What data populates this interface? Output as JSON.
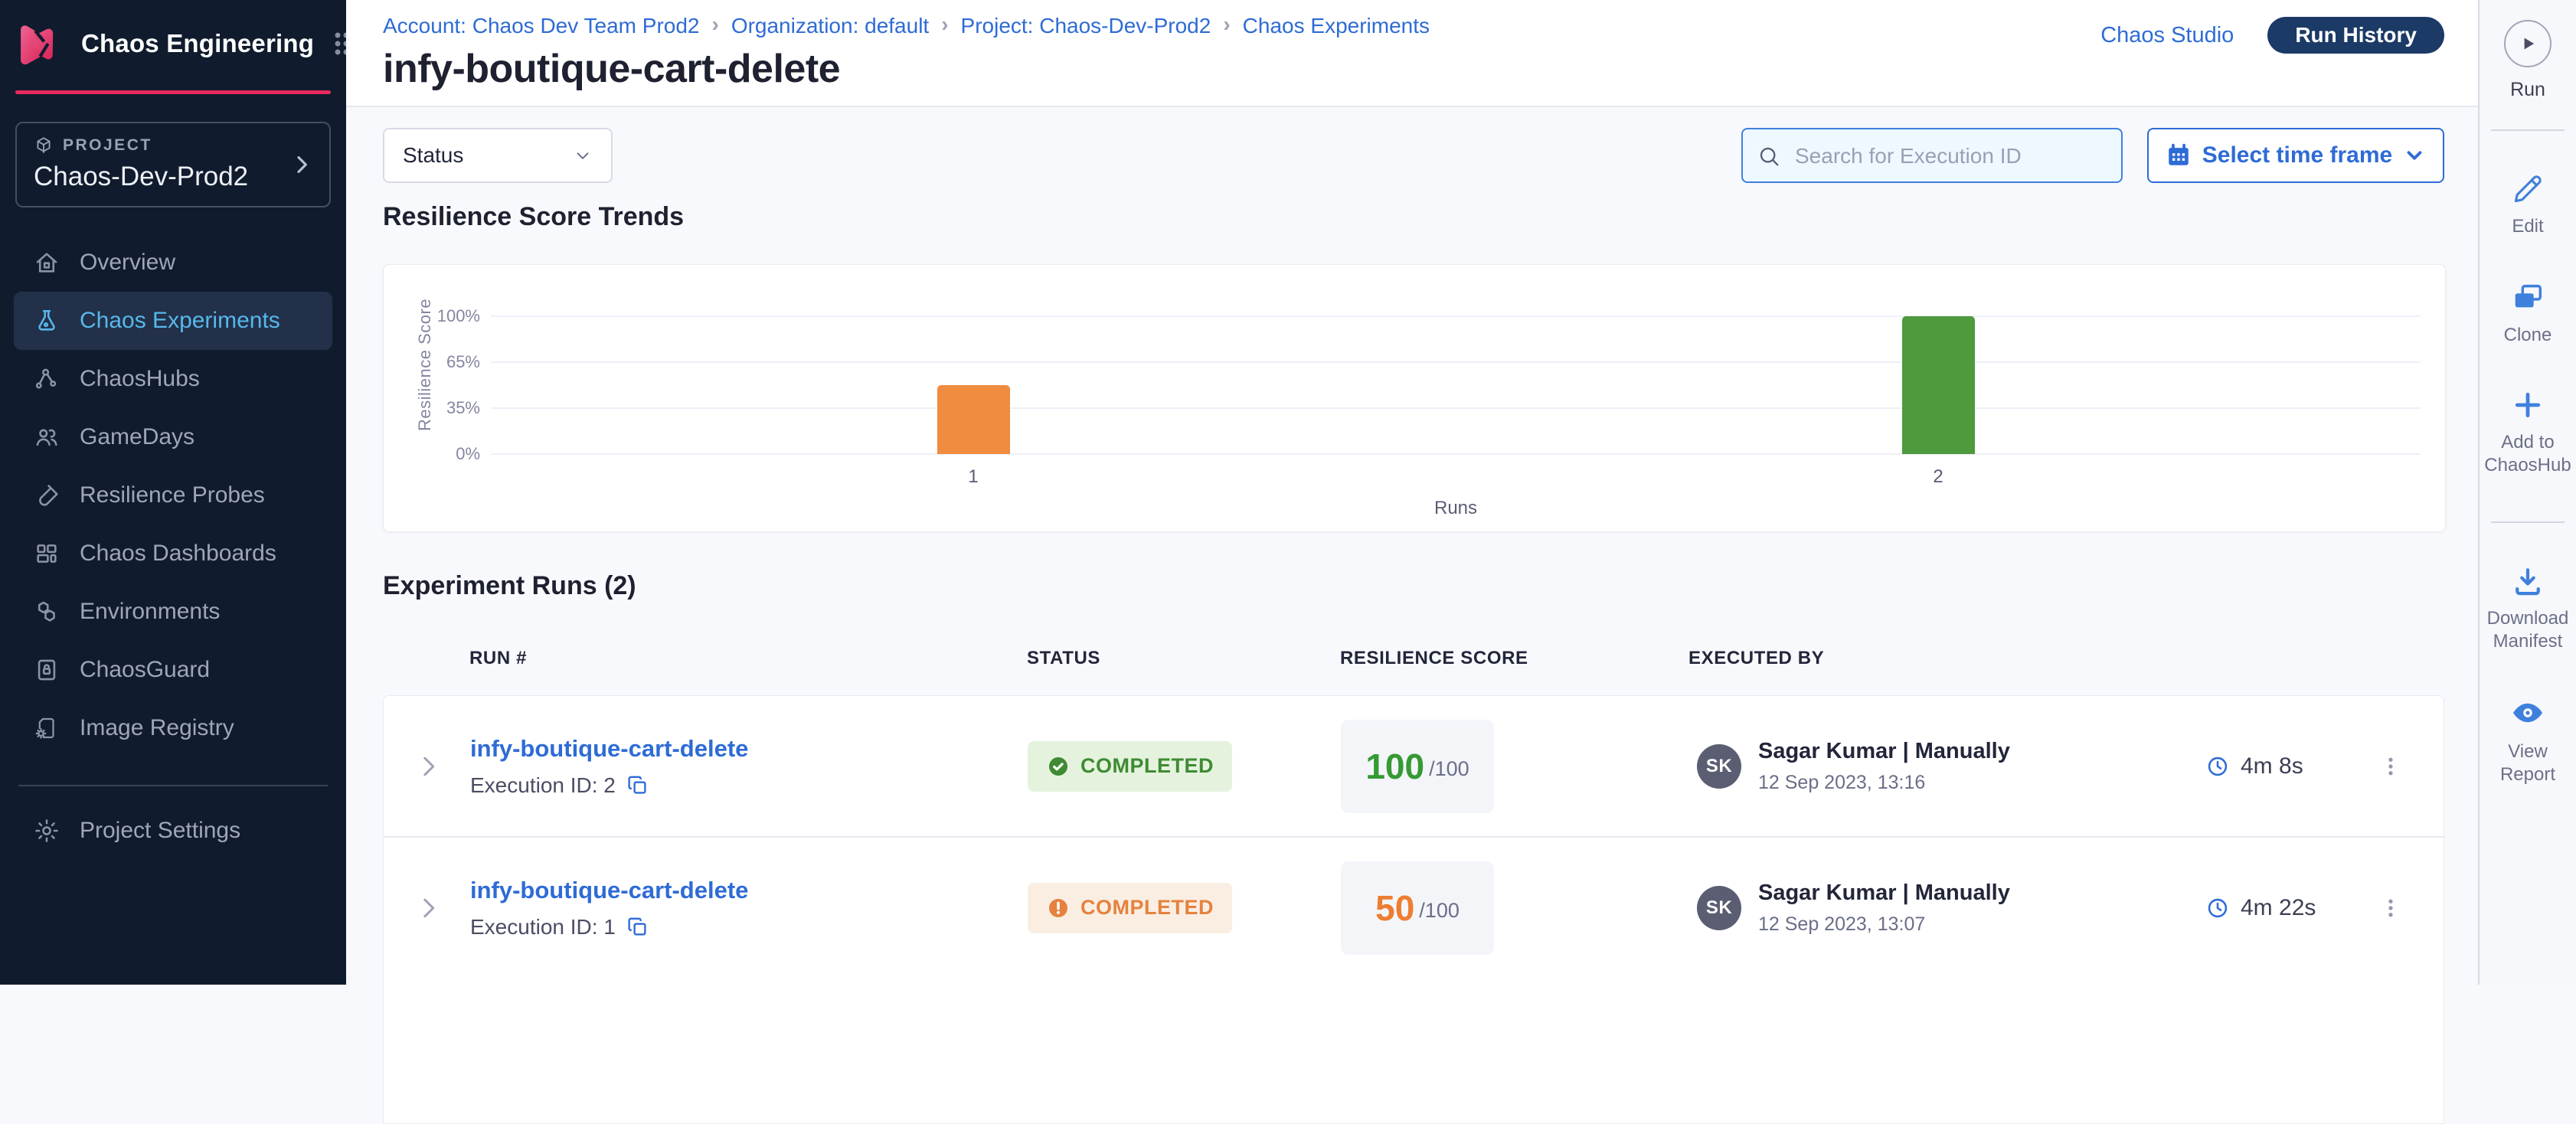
{
  "sidebar": {
    "brand": "Chaos Engineering",
    "project_label": "PROJECT",
    "project_name": "Chaos-Dev-Prod2",
    "items": [
      {
        "label": "Overview",
        "icon": "home-icon",
        "active": false
      },
      {
        "label": "Chaos Experiments",
        "icon": "flask-icon",
        "active": true
      },
      {
        "label": "ChaosHubs",
        "icon": "hub-icon",
        "active": false
      },
      {
        "label": "GameDays",
        "icon": "users-icon",
        "active": false
      },
      {
        "label": "Resilience Probes",
        "icon": "probe-icon",
        "active": false
      },
      {
        "label": "Chaos Dashboards",
        "icon": "dashboard-icon",
        "active": false
      },
      {
        "label": "Environments",
        "icon": "hexagons-icon",
        "active": false
      },
      {
        "label": "ChaosGuard",
        "icon": "lock-card-icon",
        "active": false
      },
      {
        "label": "Image Registry",
        "icon": "registry-icon",
        "active": false
      }
    ],
    "settings": {
      "label": "Project Settings",
      "icon": "gear-icon"
    }
  },
  "header": {
    "breadcrumbs": [
      "Account: Chaos Dev Team Prod2",
      "Organization: default",
      "Project: Chaos-Dev-Prod2",
      "Chaos Experiments"
    ],
    "title": "infy-boutique-cart-delete",
    "chaos_studio_label": "Chaos Studio",
    "run_history_label": "Run History"
  },
  "filters": {
    "status_label": "Status",
    "search_placeholder": "Search for Execution ID",
    "time_frame_label": "Select time frame"
  },
  "chart_section": {
    "title": "Resilience Score Trends"
  },
  "chart_data": {
    "type": "bar",
    "title": "Resilience Score Trends",
    "categories": [
      "1",
      "2"
    ],
    "values": [
      50,
      100
    ],
    "bar_colors": [
      "#ef8c3f",
      "#4e9a3d"
    ],
    "xlabel": "Runs",
    "ylabel": "Resilience Score",
    "yticks": [
      "0%",
      "35%",
      "65%",
      "100%"
    ],
    "ytick_values": [
      0,
      35,
      65,
      100
    ],
    "ylim": [
      0,
      100
    ],
    "grid": true,
    "legend": false
  },
  "runs_section": {
    "title": "Experiment Runs (2)",
    "columns": [
      "RUN #",
      "STATUS",
      "RESILIENCE SCORE",
      "EXECUTED BY"
    ],
    "rows": [
      {
        "name": "infy-boutique-cart-delete",
        "execution_id_label": "Execution ID: 2",
        "status": "COMPLETED",
        "status_kind": "success",
        "score": "100",
        "score_total": "/100",
        "executed_by_initials": "SK",
        "executed_by": "Sagar Kumar | Manually",
        "executed_at": "12 Sep 2023, 13:16",
        "duration": "4m 8s"
      },
      {
        "name": "infy-boutique-cart-delete",
        "execution_id_label": "Execution ID: 1",
        "status": "COMPLETED",
        "status_kind": "warning",
        "score": "50",
        "score_total": "/100",
        "executed_by_initials": "SK",
        "executed_by": "Sagar Kumar | Manually",
        "executed_at": "12 Sep 2023, 13:07",
        "duration": "4m 22s"
      }
    ]
  },
  "rail": {
    "run_label": "Run",
    "actions": [
      {
        "label": "Edit",
        "icon": "edit-icon"
      },
      {
        "label": "Clone",
        "icon": "clone-icon"
      },
      {
        "label": "Add to ChaosHub",
        "icon": "plus-icon"
      },
      {
        "label": "Download Manifest",
        "icon": "download-icon"
      },
      {
        "label": "View Report",
        "icon": "eye-icon"
      }
    ]
  },
  "colors": {
    "accent_blue": "#2e6bd6",
    "sidebar_navy": "#101c2e",
    "brand_pink": "#e8295f",
    "run_history_navy": "#1c3a66",
    "success_green": "#3f8b33",
    "warning_orange": "#e5823f",
    "bar_orange": "#ef8c3f",
    "bar_green": "#4e9a3d"
  }
}
